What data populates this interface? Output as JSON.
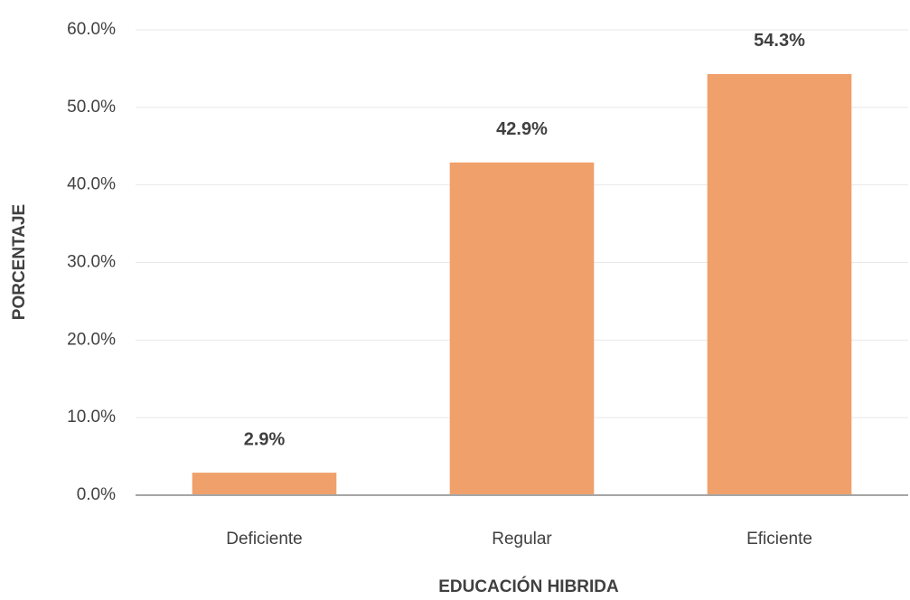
{
  "chart_data": {
    "type": "bar",
    "categories": [
      "Deficiente",
      "Regular",
      "Eficiente"
    ],
    "values": [
      2.9,
      42.9,
      54.3
    ],
    "value_labels": [
      "2.9%",
      "42.9%",
      "54.3%"
    ],
    "color": "#f0a06a",
    "x_label": "EDUCACIÓN HIBRIDA",
    "y_label": "PORCENTAJE",
    "ylim": [
      0,
      60
    ],
    "yticks": [
      {
        "value": 0,
        "label": "0.0%"
      },
      {
        "value": 10,
        "label": "10.0%"
      },
      {
        "value": 20,
        "label": "20.0%"
      },
      {
        "value": 30,
        "label": "30.0%"
      },
      {
        "value": 40,
        "label": "40.0%"
      },
      {
        "value": 50,
        "label": "50.0%"
      },
      {
        "value": 60,
        "label": "60.0%"
      }
    ],
    "grid": true
  }
}
